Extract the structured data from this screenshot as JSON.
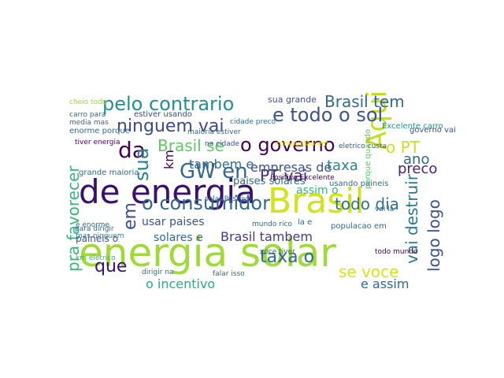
{
  "chart_data": {
    "type": "wordcloud",
    "words": [
      "energia solar",
      "de energia",
      "Brasil",
      "Aqui",
      "o consumidor",
      "pelo contrario",
      "e todo o sol",
      "Brasil tem",
      "ninguem vai",
      "o governo",
      "Brasil se",
      "da",
      "GW en",
      "sua",
      "em",
      "pra favorecer",
      "PT vai",
      "taxa",
      "o PT",
      "ano",
      "preco",
      "vai destruir",
      "logo logo",
      "todo dia",
      "taxa o",
      "se voce",
      "e assim",
      "o incentivo",
      "que",
      "Brasil tambem",
      "solares e",
      "usar paises",
      "paises solares",
      "empresas de",
      "tambem e",
      "assim o",
      "km",
      "estiver usando",
      "sua grande",
      "maioria estiver",
      "enorme porque",
      "grande maioria",
      "para dirigir",
      "paineis o",
      "km eletrico",
      "e enorme",
      "mas ninguem",
      "dirigir na",
      "falar isso",
      "populacao em",
      "Positivo Excelente",
      "solar Positivo",
      "Excelente carro",
      "combustao em",
      "eletrico custa",
      "la e",
      "mundo rico",
      "porque quando",
      "media mas",
      "carro para",
      "cheio todo",
      "tiver energia",
      "voce tiver",
      "governo vai",
      "usando paineis",
      "na cidade",
      "cidade preco",
      "todo mundo",
      "vai la"
    ]
  }
}
